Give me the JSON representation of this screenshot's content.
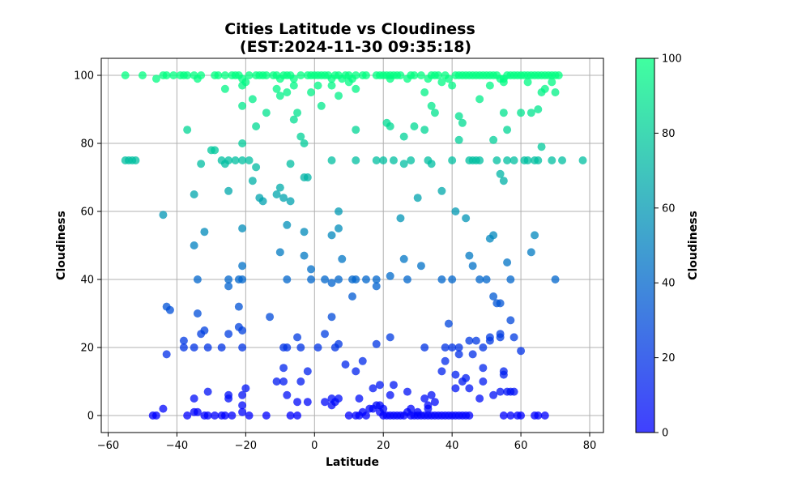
{
  "chart_data": {
    "type": "scatter",
    "title_line1": "Cities Latitude vs Cloudiness",
    "title_line2": "(EST:2024-11-30 09:35:18)",
    "xlabel": "Latitude",
    "ylabel": "Cloudiness",
    "xlim": [
      -62,
      84
    ],
    "ylim": [
      -5,
      105
    ],
    "xticks": [
      -60,
      -40,
      -20,
      0,
      20,
      40,
      60,
      80
    ],
    "yticks": [
      0,
      20,
      40,
      60,
      80,
      100
    ],
    "grid": true,
    "colormap": {
      "low": "#0000ff",
      "high": "#00ff80",
      "alpha": 0.75
    },
    "colorbar": {
      "label": "Cloudiness",
      "range": [
        0,
        100
      ],
      "ticks": [
        0,
        20,
        40,
        60,
        80,
        100
      ]
    },
    "points": [
      [
        -55,
        75
      ],
      [
        -54,
        75
      ],
      [
        -53,
        75
      ],
      [
        -52,
        75
      ],
      [
        -55,
        100
      ],
      [
        -50,
        100
      ],
      [
        -46,
        99
      ],
      [
        -44,
        100
      ],
      [
        -43,
        100
      ],
      [
        -41,
        100
      ],
      [
        -39,
        100
      ],
      [
        -38,
        100
      ],
      [
        -37,
        100
      ],
      [
        -35,
        100
      ],
      [
        -34,
        99
      ],
      [
        -33,
        100
      ],
      [
        -29,
        100
      ],
      [
        -28,
        100
      ],
      [
        -26,
        100
      ],
      [
        -24,
        100
      ],
      [
        -23,
        100
      ],
      [
        -22,
        100
      ],
      [
        -21,
        99
      ],
      [
        -20,
        98
      ],
      [
        -19,
        100
      ],
      [
        -17,
        100
      ],
      [
        -16,
        100
      ],
      [
        -15,
        100
      ],
      [
        -14,
        100
      ],
      [
        -12,
        100
      ],
      [
        -11,
        100
      ],
      [
        -10,
        99
      ],
      [
        -9,
        100
      ],
      [
        -8,
        100
      ],
      [
        -7,
        100
      ],
      [
        -6,
        99
      ],
      [
        -4,
        100
      ],
      [
        -2,
        100
      ],
      [
        -1,
        100
      ],
      [
        0,
        100
      ],
      [
        1,
        100
      ],
      [
        2,
        100
      ],
      [
        3,
        100
      ],
      [
        4,
        100
      ],
      [
        5,
        99
      ],
      [
        6,
        100
      ],
      [
        7,
        100
      ],
      [
        8,
        99
      ],
      [
        9,
        100
      ],
      [
        10,
        100
      ],
      [
        11,
        99
      ],
      [
        12,
        100
      ],
      [
        14,
        100
      ],
      [
        15,
        100
      ],
      [
        18,
        100
      ],
      [
        19,
        100
      ],
      [
        20,
        100
      ],
      [
        21,
        100
      ],
      [
        22,
        100
      ],
      [
        23,
        100
      ],
      [
        24,
        100
      ],
      [
        25,
        100
      ],
      [
        27,
        99
      ],
      [
        28,
        100
      ],
      [
        29,
        100
      ],
      [
        31,
        100
      ],
      [
        33,
        99
      ],
      [
        34,
        100
      ],
      [
        35,
        100
      ],
      [
        36,
        100
      ],
      [
        37,
        98
      ],
      [
        38,
        100
      ],
      [
        39,
        99
      ],
      [
        41,
        100
      ],
      [
        42,
        100
      ],
      [
        43,
        100
      ],
      [
        44,
        100
      ],
      [
        45,
        100
      ],
      [
        46,
        100
      ],
      [
        47,
        100
      ],
      [
        48,
        100
      ],
      [
        49,
        100
      ],
      [
        50,
        100
      ],
      [
        51,
        100
      ],
      [
        52,
        100
      ],
      [
        53,
        100
      ],
      [
        54,
        99
      ],
      [
        55,
        98
      ],
      [
        56,
        100
      ],
      [
        57,
        100
      ],
      [
        58,
        100
      ],
      [
        59,
        100
      ],
      [
        60,
        100
      ],
      [
        61,
        100
      ],
      [
        62,
        100
      ],
      [
        63,
        100
      ],
      [
        64,
        100
      ],
      [
        65,
        100
      ],
      [
        66,
        100
      ],
      [
        67,
        100
      ],
      [
        68,
        100
      ],
      [
        69,
        100
      ],
      [
        70,
        100
      ],
      [
        71,
        100
      ],
      [
        -26,
        96
      ],
      [
        -21,
        97
      ],
      [
        -11,
        96
      ],
      [
        -8,
        95
      ],
      [
        -6,
        97
      ],
      [
        -1,
        95
      ],
      [
        1,
        97
      ],
      [
        5,
        97
      ],
      [
        7,
        94
      ],
      [
        10,
        98
      ],
      [
        12,
        96
      ],
      [
        22,
        99
      ],
      [
        32,
        95
      ],
      [
        40,
        97
      ],
      [
        51,
        97
      ],
      [
        55,
        99
      ],
      [
        62,
        98
      ],
      [
        66,
        95
      ],
      [
        67,
        96
      ],
      [
        69,
        98
      ],
      [
        70,
        95
      ],
      [
        -18,
        93
      ],
      [
        -21,
        91
      ],
      [
        -10,
        94
      ],
      [
        -5,
        89
      ],
      [
        2,
        91
      ],
      [
        -6,
        87
      ],
      [
        12,
        84
      ],
      [
        21,
        86
      ],
      [
        22,
        85
      ],
      [
        26,
        82
      ],
      [
        29,
        85
      ],
      [
        32,
        84
      ],
      [
        34,
        91
      ],
      [
        35,
        89
      ],
      [
        42,
        88
      ],
      [
        43,
        86
      ],
      [
        48,
        93
      ],
      [
        55,
        89
      ],
      [
        56,
        84
      ],
      [
        60,
        89
      ],
      [
        63,
        89
      ],
      [
        65,
        90
      ],
      [
        -37,
        84
      ],
      [
        -17,
        85
      ],
      [
        -14,
        89
      ],
      [
        -3,
        80
      ],
      [
        -4,
        82
      ],
      [
        -21,
        80
      ],
      [
        -30,
        78
      ],
      [
        -29,
        78
      ],
      [
        -33,
        74
      ],
      [
        -27,
        75
      ],
      [
        -26,
        74
      ],
      [
        -25,
        75
      ],
      [
        -23,
        75
      ],
      [
        -21,
        75
      ],
      [
        -19,
        75
      ],
      [
        -17,
        73
      ],
      [
        -18,
        69
      ],
      [
        -16,
        64
      ],
      [
        -15,
        63
      ],
      [
        -11,
        65
      ],
      [
        -10,
        67
      ],
      [
        -9,
        64
      ],
      [
        -7,
        63
      ],
      [
        -2,
        70
      ],
      [
        -3,
        70
      ],
      [
        -7,
        74
      ],
      [
        5,
        75
      ],
      [
        12,
        75
      ],
      [
        18,
        75
      ],
      [
        20,
        75
      ],
      [
        23,
        75
      ],
      [
        26,
        74
      ],
      [
        28,
        75
      ],
      [
        33,
        75
      ],
      [
        34,
        74
      ],
      [
        40,
        75
      ],
      [
        42,
        81
      ],
      [
        45,
        75
      ],
      [
        46,
        75
      ],
      [
        47,
        75
      ],
      [
        48,
        75
      ],
      [
        52,
        81
      ],
      [
        53,
        75
      ],
      [
        54,
        71
      ],
      [
        55,
        69
      ],
      [
        56,
        75
      ],
      [
        58,
        75
      ],
      [
        61,
        75
      ],
      [
        62,
        75
      ],
      [
        64,
        75
      ],
      [
        65,
        75
      ],
      [
        66,
        79
      ],
      [
        69,
        75
      ],
      [
        72,
        75
      ],
      [
        78,
        75
      ],
      [
        -44,
        59
      ],
      [
        -35,
        65
      ],
      [
        -32,
        54
      ],
      [
        -25,
        66
      ],
      [
        -21,
        55
      ],
      [
        -8,
        56
      ],
      [
        -3,
        54
      ],
      [
        5,
        53
      ],
      [
        7,
        55
      ],
      [
        7,
        60
      ],
      [
        25,
        58
      ],
      [
        30,
        64
      ],
      [
        37,
        66
      ],
      [
        41,
        60
      ],
      [
        44,
        58
      ],
      [
        51,
        52
      ],
      [
        52,
        53
      ],
      [
        56,
        45
      ],
      [
        63,
        48
      ],
      [
        64,
        53
      ],
      [
        -35,
        50
      ],
      [
        -34,
        40
      ],
      [
        -25,
        40
      ],
      [
        -25,
        38
      ],
      [
        -22,
        40
      ],
      [
        -21,
        44
      ],
      [
        -21,
        40
      ],
      [
        -10,
        48
      ],
      [
        -8,
        40
      ],
      [
        -3,
        47
      ],
      [
        -1,
        40
      ],
      [
        -1,
        43
      ],
      [
        3,
        40
      ],
      [
        5,
        39
      ],
      [
        7,
        40
      ],
      [
        8,
        46
      ],
      [
        11,
        40
      ],
      [
        11,
        35
      ],
      [
        12,
        40
      ],
      [
        15,
        40
      ],
      [
        18,
        40
      ],
      [
        18,
        38
      ],
      [
        22,
        41
      ],
      [
        26,
        46
      ],
      [
        27,
        40
      ],
      [
        31,
        44
      ],
      [
        37,
        40
      ],
      [
        40,
        40
      ],
      [
        45,
        47
      ],
      [
        46,
        44
      ],
      [
        48,
        40
      ],
      [
        50,
        40
      ],
      [
        52,
        35
      ],
      [
        54,
        33
      ],
      [
        57,
        40
      ],
      [
        70,
        40
      ],
      [
        -43,
        32
      ],
      [
        -42,
        31
      ],
      [
        -38,
        22
      ],
      [
        -38,
        20
      ],
      [
        -35,
        20
      ],
      [
        -34,
        30
      ],
      [
        -33,
        24
      ],
      [
        -32,
        25
      ],
      [
        -31,
        20
      ],
      [
        -27,
        20
      ],
      [
        -25,
        24
      ],
      [
        -22,
        32
      ],
      [
        -22,
        26
      ],
      [
        -21,
        25
      ],
      [
        -21,
        20
      ],
      [
        -13,
        29
      ],
      [
        -9,
        20
      ],
      [
        -8,
        20
      ],
      [
        -5,
        23
      ],
      [
        -4,
        20
      ],
      [
        -2,
        13
      ],
      [
        1,
        20
      ],
      [
        3,
        24
      ],
      [
        5,
        29
      ],
      [
        6,
        20
      ],
      [
        7,
        21
      ],
      [
        9,
        15
      ],
      [
        12,
        13
      ],
      [
        18,
        21
      ],
      [
        22,
        23
      ],
      [
        32,
        20
      ],
      [
        37,
        13
      ],
      [
        38,
        20
      ],
      [
        39,
        27
      ],
      [
        40,
        20
      ],
      [
        42,
        20
      ],
      [
        42,
        18
      ],
      [
        45,
        22
      ],
      [
        46,
        18
      ],
      [
        47,
        22
      ],
      [
        49,
        20
      ],
      [
        51,
        23
      ],
      [
        51,
        22
      ],
      [
        53,
        33
      ],
      [
        54,
        24
      ],
      [
        54,
        23
      ],
      [
        55,
        13
      ],
      [
        55,
        12
      ],
      [
        57,
        28
      ],
      [
        58,
        23
      ],
      [
        60,
        19
      ],
      [
        -43,
        18
      ],
      [
        -35,
        5
      ],
      [
        -31,
        7
      ],
      [
        -25,
        6
      ],
      [
        -25,
        5
      ],
      [
        -21,
        6
      ],
      [
        -20,
        8
      ],
      [
        -21,
        3
      ],
      [
        -11,
        10
      ],
      [
        -9,
        14
      ],
      [
        -9,
        10
      ],
      [
        -8,
        6
      ],
      [
        -5,
        4
      ],
      [
        -4,
        10
      ],
      [
        -2,
        4
      ],
      [
        3,
        4
      ],
      [
        5,
        5
      ],
      [
        5,
        3
      ],
      [
        6,
        4
      ],
      [
        7,
        5
      ],
      [
        13,
        5
      ],
      [
        14,
        16
      ],
      [
        17,
        8
      ],
      [
        19,
        9
      ],
      [
        22,
        6
      ],
      [
        23,
        9
      ],
      [
        27,
        7
      ],
      [
        32,
        5
      ],
      [
        33,
        3
      ],
      [
        35,
        4
      ],
      [
        38,
        16
      ],
      [
        41,
        8
      ],
      [
        41,
        12
      ],
      [
        43,
        10
      ],
      [
        44,
        11
      ],
      [
        45,
        8
      ],
      [
        48,
        5
      ],
      [
        49,
        10
      ],
      [
        49,
        14
      ],
      [
        52,
        6
      ],
      [
        54,
        7
      ],
      [
        56,
        7
      ],
      [
        57,
        7
      ],
      [
        58,
        7
      ],
      [
        -47,
        0
      ],
      [
        -46,
        0
      ],
      [
        -44,
        2
      ],
      [
        -37,
        0
      ],
      [
        -35,
        1
      ],
      [
        -34,
        1
      ],
      [
        -32,
        0
      ],
      [
        -31,
        0
      ],
      [
        -29,
        0
      ],
      [
        -27,
        0
      ],
      [
        -26,
        0
      ],
      [
        -24,
        0
      ],
      [
        -21,
        1
      ],
      [
        -19,
        0
      ],
      [
        -14,
        0
      ],
      [
        -7,
        0
      ],
      [
        -5,
        0
      ],
      [
        10,
        0
      ],
      [
        12,
        0
      ],
      [
        13,
        0
      ],
      [
        14,
        1
      ],
      [
        15,
        0
      ],
      [
        16,
        2
      ],
      [
        17,
        2
      ],
      [
        18,
        3
      ],
      [
        19,
        3
      ],
      [
        19,
        1
      ],
      [
        20,
        0
      ],
      [
        21,
        0
      ],
      [
        22,
        0
      ],
      [
        23,
        0
      ],
      [
        24,
        0
      ],
      [
        25,
        0
      ],
      [
        26,
        0
      ],
      [
        27,
        1
      ],
      [
        28,
        0
      ],
      [
        29,
        0
      ],
      [
        30,
        0
      ],
      [
        31,
        0
      ],
      [
        32,
        0
      ],
      [
        33,
        2
      ],
      [
        33,
        0
      ],
      [
        34,
        0
      ],
      [
        35,
        0
      ],
      [
        36,
        0
      ],
      [
        37,
        0
      ],
      [
        38,
        0
      ],
      [
        39,
        0
      ],
      [
        40,
        0
      ],
      [
        41,
        0
      ],
      [
        42,
        0
      ],
      [
        43,
        0
      ],
      [
        44,
        0
      ],
      [
        45,
        0
      ],
      [
        55,
        0
      ],
      [
        57,
        0
      ],
      [
        59,
        0
      ],
      [
        60,
        0
      ],
      [
        64,
        0
      ],
      [
        65,
        0
      ],
      [
        67,
        0
      ],
      [
        20,
        2
      ],
      [
        30,
        1
      ],
      [
        34,
        6
      ],
      [
        28,
        2
      ]
    ]
  }
}
